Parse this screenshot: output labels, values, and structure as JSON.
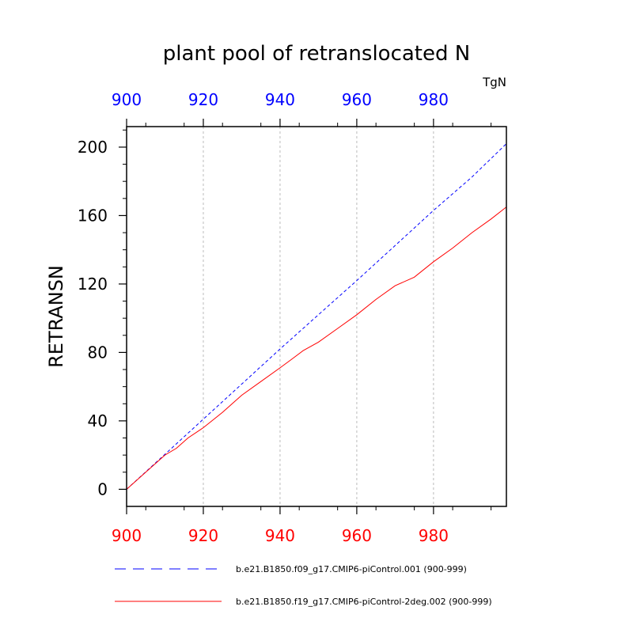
{
  "chart_data": {
    "type": "line",
    "title": "plant pool of retranslocated N",
    "units": "TgN",
    "ylabel": "RETRANSN",
    "xlim": [
      900,
      999
    ],
    "ylim": [
      -10,
      212
    ],
    "xticks": [
      900,
      920,
      940,
      960,
      980
    ],
    "yticks": [
      0,
      40,
      80,
      120,
      160,
      200
    ],
    "top_axis_color": "#0000ff",
    "bottom_axis_color": "#ff0000",
    "grid": "vertical dashed at major x ticks",
    "series": [
      {
        "name": "b.e21.B1850.f09_g17.CMIP6-piControl.001 (900-999)",
        "color": "#0000ff",
        "style": "dashed",
        "x": [
          900,
          910,
          920,
          930,
          940,
          950,
          960,
          970,
          980,
          990,
          999
        ],
        "y": [
          0,
          20.5,
          41,
          61.5,
          82,
          102,
          122,
          142.5,
          163,
          182.5,
          202
        ]
      },
      {
        "name": "b.e21.B1850.f19_g17.CMIP6-piControl-2deg.002 (900-999)",
        "color": "#ff0000",
        "style": "solid",
        "x": [
          900,
          905,
          910,
          913,
          916,
          920,
          925,
          930,
          935,
          940,
          943,
          946,
          950,
          955,
          960,
          965,
          970,
          975,
          980,
          985,
          990,
          995,
          999
        ],
        "y": [
          0,
          10,
          20,
          24,
          30,
          36,
          45,
          55,
          63,
          71,
          76,
          81,
          86,
          94,
          102,
          111,
          119,
          124,
          133,
          141,
          150,
          158,
          165
        ]
      }
    ]
  }
}
